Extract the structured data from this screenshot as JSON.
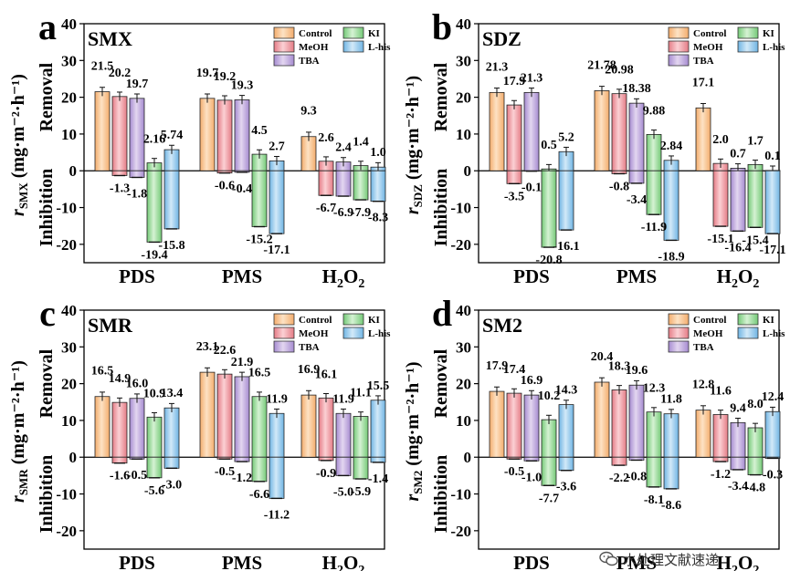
{
  "watermark": {
    "text": "水处理文献速递"
  },
  "chart_data": [
    {
      "type": "bar",
      "panel_letter": "a",
      "pollutant": "SMX",
      "ylabel_main": "r",
      "ylabel_sub": "SMX",
      "ylabel_unit": "(mg·m⁻²·h⁻¹)",
      "removal_label": "Removal",
      "inhibition_label": "Inhibition",
      "ylim": [
        -25,
        40
      ],
      "yticks": [
        "40",
        "30",
        "20",
        "10",
        "0",
        "-10",
        "-20"
      ],
      "categories": [
        "PDS",
        "PMS",
        "H2O2"
      ],
      "series": [
        {
          "name": "Control",
          "values": [
            21.5,
            19.7,
            9.3
          ],
          "inhibition": [
            null,
            null,
            null
          ]
        },
        {
          "name": "MeOH",
          "values": [
            20.2,
            19.2,
            2.6
          ],
          "inhibition": [
            -1.3,
            -0.6,
            -6.7
          ]
        },
        {
          "name": "TBA",
          "values": [
            19.7,
            19.3,
            2.4
          ],
          "inhibition": [
            -1.8,
            -0.4,
            -6.9
          ]
        },
        {
          "name": "KI",
          "values": [
            2.16,
            4.5,
            1.4
          ],
          "inhibition": [
            -19.4,
            -15.2,
            -7.9
          ]
        },
        {
          "name": "L-his",
          "values": [
            5.74,
            2.7,
            1.0
          ],
          "inhibition": [
            -15.8,
            -17.1,
            -8.3
          ]
        }
      ],
      "value_labels": [
        [
          "21.5",
          "20.2",
          "19.7",
          "2.16",
          "5.74"
        ],
        [
          "19.7",
          "19.2",
          "19.3",
          "4.5",
          "2.7"
        ],
        [
          "9.3",
          "2.6",
          "2.4",
          "1.4",
          "1.0"
        ]
      ],
      "inhibition_labels": [
        [
          null,
          "-1.3",
          "-1.8",
          "-19.4",
          "-15.8"
        ],
        [
          null,
          "-0.6",
          "-0.4",
          "-15.2",
          "-17.1"
        ],
        [
          null,
          "-6.7",
          "-6.9",
          "-7.9",
          "-8.3"
        ]
      ]
    },
    {
      "type": "bar",
      "panel_letter": "b",
      "pollutant": "SDZ",
      "ylabel_main": "r",
      "ylabel_sub": "SDZ",
      "ylabel_unit": "(mg·m⁻²·h⁻¹)",
      "removal_label": "Removal",
      "inhibition_label": "Inhibition",
      "ylim": [
        -25,
        40
      ],
      "yticks": [
        "40",
        "30",
        "20",
        "10",
        "0",
        "-10",
        "-20"
      ],
      "categories": [
        "PDS",
        "PMS",
        "H2O2"
      ],
      "series": [
        {
          "name": "Control",
          "values": [
            21.3,
            21.78,
            17.1
          ],
          "inhibition": [
            null,
            null,
            null
          ]
        },
        {
          "name": "MeOH",
          "values": [
            17.9,
            20.98,
            2.0
          ],
          "inhibition": [
            -3.5,
            -0.8,
            -15.1
          ]
        },
        {
          "name": "TBA",
          "values": [
            21.3,
            18.38,
            0.7
          ],
          "inhibition": [
            -0.1,
            -3.4,
            -16.4
          ]
        },
        {
          "name": "KI",
          "values": [
            0.5,
            9.88,
            1.7
          ],
          "inhibition": [
            -20.8,
            -11.9,
            -15.4
          ]
        },
        {
          "name": "L-his",
          "values": [
            5.2,
            2.84,
            0.1
          ],
          "inhibition": [
            -16.1,
            -18.9,
            -17.1
          ]
        }
      ],
      "value_labels": [
        [
          "21.3",
          "17.9",
          "21.3",
          "0.5",
          "5.2"
        ],
        [
          "21.78",
          "20.98",
          "18.38",
          "9.88",
          "2.84"
        ],
        [
          "17.1",
          "2.0",
          "0.7",
          "1.7",
          "0.1"
        ]
      ],
      "inhibition_labels": [
        [
          null,
          "-3.5",
          "-0.1",
          "-20.8",
          "-16.1"
        ],
        [
          null,
          "-0.8",
          "-3.4",
          "-11.9",
          "-18.9"
        ],
        [
          null,
          "-15.1",
          "-16.4",
          "-15.4",
          "-17.1"
        ]
      ]
    },
    {
      "type": "bar",
      "panel_letter": "c",
      "pollutant": "SMR",
      "ylabel_main": "r",
      "ylabel_sub": "SMR",
      "ylabel_unit": "(mg·m⁻²·h⁻¹)",
      "removal_label": "Removal",
      "inhibition_label": "Inhibition",
      "ylim": [
        -25,
        40
      ],
      "yticks": [
        "40",
        "30",
        "20",
        "10",
        "0",
        "-10",
        "-20"
      ],
      "categories": [
        "PDS",
        "PMS",
        "H2O2"
      ],
      "series": [
        {
          "name": "Control",
          "values": [
            16.5,
            23.1,
            16.9
          ],
          "inhibition": [
            null,
            null,
            null
          ]
        },
        {
          "name": "MeOH",
          "values": [
            14.9,
            22.6,
            16.1
          ],
          "inhibition": [
            -1.6,
            -0.5,
            -0.9
          ]
        },
        {
          "name": "TBA",
          "values": [
            16.0,
            21.9,
            11.9
          ],
          "inhibition": [
            -0.5,
            -1.2,
            -5.0
          ]
        },
        {
          "name": "KI",
          "values": [
            10.9,
            16.5,
            11.1
          ],
          "inhibition": [
            -5.6,
            -6.6,
            -5.9
          ]
        },
        {
          "name": "L-his",
          "values": [
            13.4,
            11.9,
            15.5
          ],
          "inhibition": [
            -3.0,
            -11.2,
            -1.4
          ]
        }
      ],
      "value_labels": [
        [
          "16.5",
          "14.9",
          "16.0",
          "10.9",
          "13.4"
        ],
        [
          "23.1",
          "22.6",
          "21.9",
          "16.5",
          "11.9"
        ],
        [
          "16.9",
          "16.1",
          "11.9",
          "11.1",
          "15.5"
        ]
      ],
      "inhibition_labels": [
        [
          null,
          "-1.6",
          "-0.5",
          "-5.6",
          "-3.0"
        ],
        [
          null,
          "-0.5",
          "-1.2",
          "-6.6",
          "-11.2"
        ],
        [
          null,
          "-0.9",
          "-5.0",
          "-5.9",
          "-1.4"
        ]
      ]
    },
    {
      "type": "bar",
      "panel_letter": "d",
      "pollutant": "SM2",
      "ylabel_main": "r",
      "ylabel_sub": "SM2",
      "ylabel_unit": "(mg·m⁻²·h⁻¹)",
      "removal_label": "Removal",
      "inhibition_label": "Inhibition",
      "ylim": [
        -25,
        40
      ],
      "yticks": [
        "40",
        "30",
        "20",
        "10",
        "0",
        "-10",
        "-20"
      ],
      "categories": [
        "PDS",
        "PMS",
        "H2O2"
      ],
      "series": [
        {
          "name": "Control",
          "values": [
            17.9,
            20.4,
            12.8
          ],
          "inhibition": [
            null,
            null,
            null
          ]
        },
        {
          "name": "MeOH",
          "values": [
            17.4,
            18.3,
            11.6
          ],
          "inhibition": [
            -0.5,
            -2.2,
            -1.2
          ]
        },
        {
          "name": "TBA",
          "values": [
            16.9,
            19.6,
            9.4
          ],
          "inhibition": [
            -1.0,
            -0.8,
            -3.4
          ]
        },
        {
          "name": "KI",
          "values": [
            10.2,
            12.3,
            8.0
          ],
          "inhibition": [
            -7.7,
            -8.1,
            -4.8
          ]
        },
        {
          "name": "L-his",
          "values": [
            14.3,
            11.8,
            12.4
          ],
          "inhibition": [
            -3.6,
            -8.6,
            -0.3
          ]
        }
      ],
      "value_labels": [
        [
          "17.9",
          "17.4",
          "16.9",
          "10.2",
          "14.3"
        ],
        [
          "20.4",
          "18.3",
          "19.6",
          "12.3",
          "11.8"
        ],
        [
          "12.8",
          "11.6",
          "9.4",
          "8.0",
          "12.4"
        ]
      ],
      "inhibition_labels": [
        [
          null,
          "-0.5",
          "-1.0",
          "-7.7",
          "-3.6"
        ],
        [
          null,
          "-2.2",
          "-0.8",
          "-8.1",
          "-8.6"
        ],
        [
          null,
          "-1.2",
          "-3.4",
          "-4.8",
          "-0.3"
        ]
      ]
    }
  ],
  "legend": [
    "Control",
    "MeOH",
    "TBA",
    "KI",
    "L-his"
  ],
  "colors": {
    "Control": [
      "#fde2c4",
      "#f3ac6c"
    ],
    "MeOH": [
      "#fbd0d4",
      "#e47b85"
    ],
    "TBA": [
      "#e3d6f0",
      "#a58bd0"
    ],
    "KI": [
      "#d5f2d3",
      "#74c977"
    ],
    "L-his": [
      "#d2e9f8",
      "#6fb4e3"
    ]
  }
}
